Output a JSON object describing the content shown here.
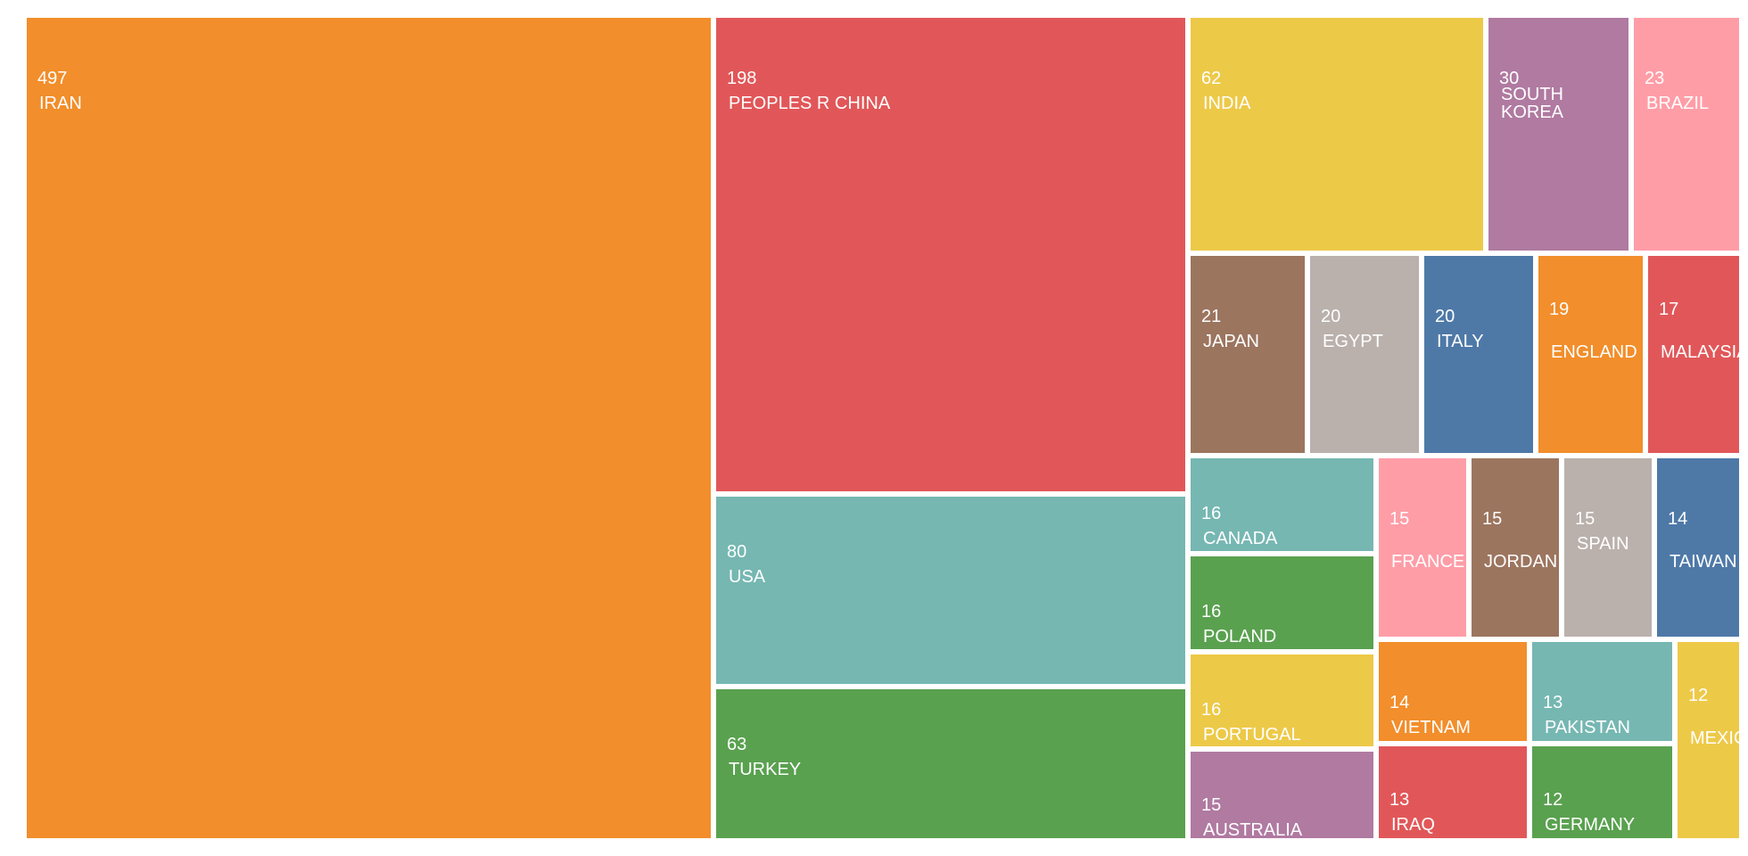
{
  "chart_data": {
    "type": "treemap",
    "title": "",
    "items": [
      {
        "label": "IRAN",
        "value": 497,
        "color": "#f28e2b"
      },
      {
        "label": "PEOPLES R CHINA",
        "value": 198,
        "color": "#e15759"
      },
      {
        "label": "USA",
        "value": 80,
        "color": "#76b7b2"
      },
      {
        "label": "TURKEY",
        "value": 63,
        "color": "#59a14f"
      },
      {
        "label": "INDIA",
        "value": 62,
        "color": "#edc948"
      },
      {
        "label": "SOUTH KOREA",
        "value": 30,
        "color": "#b07aa1"
      },
      {
        "label": "BRAZIL",
        "value": 23,
        "color": "#ff9da7"
      },
      {
        "label": "JAPAN",
        "value": 21,
        "color": "#9c755f"
      },
      {
        "label": "EGYPT",
        "value": 20,
        "color": "#bab0ac"
      },
      {
        "label": "ITALY",
        "value": 20,
        "color": "#4e79a7"
      },
      {
        "label": "ENGLAND",
        "value": 19,
        "color": "#f28e2b"
      },
      {
        "label": "MALAYSIA",
        "value": 17,
        "color": "#e15759"
      },
      {
        "label": "CANADA",
        "value": 16,
        "color": "#76b7b2"
      },
      {
        "label": "POLAND",
        "value": 16,
        "color": "#59a14f"
      },
      {
        "label": "PORTUGAL",
        "value": 16,
        "color": "#edc948"
      },
      {
        "label": "AUSTRALIA",
        "value": 15,
        "color": "#b07aa1"
      },
      {
        "label": "FRANCE",
        "value": 15,
        "color": "#ff9da7"
      },
      {
        "label": "JORDAN",
        "value": 15,
        "color": "#9c755f"
      },
      {
        "label": "SPAIN",
        "value": 15,
        "color": "#bab0ac"
      },
      {
        "label": "TAIWAN",
        "value": 14,
        "color": "#4e79a7"
      },
      {
        "label": "VIETNAM",
        "value": 14,
        "color": "#f28e2b"
      },
      {
        "label": "PAKISTAN",
        "value": 13,
        "color": "#76b7b2"
      },
      {
        "label": "IRAQ",
        "value": 13,
        "color": "#e15759"
      },
      {
        "label": "GERMANY",
        "value": 12,
        "color": "#59a14f"
      },
      {
        "label": "MEXICO",
        "value": 12,
        "color": "#edc948"
      }
    ]
  }
}
